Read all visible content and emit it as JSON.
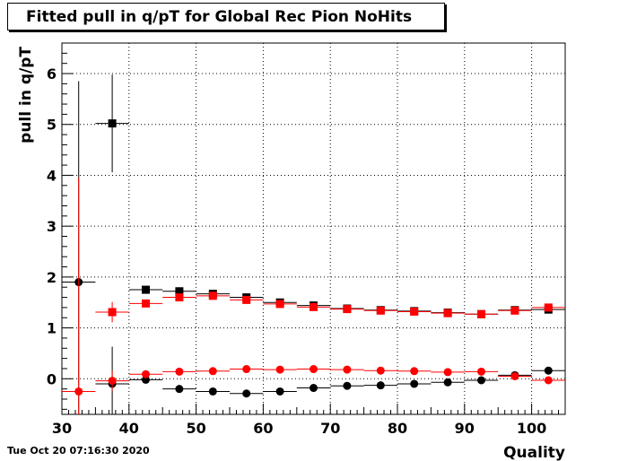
{
  "title": "Fitted pull in q/pT for Global Rec Pion NoHits",
  "timestamp": "Tue Oct 20 07:16:30 2020",
  "chart_data": {
    "type": "scatter",
    "title": "Fitted pull in q/pT for Global Rec Pion NoHits",
    "xlabel": "Quality",
    "ylabel": "pull in q/pT",
    "xlim": [
      30,
      105
    ],
    "ylim": [
      -0.7,
      6.6
    ],
    "xticks": [
      30,
      40,
      50,
      60,
      70,
      80,
      90,
      100
    ],
    "yticks": [
      0,
      1,
      2,
      3,
      4,
      5,
      6
    ],
    "grid": true,
    "x": [
      32.5,
      37.5,
      42.5,
      47.5,
      52.5,
      57.5,
      62.5,
      67.5,
      72.5,
      77.5,
      82.5,
      87.5,
      92.5,
      97.5,
      102.5
    ],
    "x_error": 2.5,
    "series": [
      {
        "color": "#000000",
        "marker": "square",
        "values": [
          null,
          5.02,
          1.75,
          1.72,
          1.67,
          1.6,
          1.5,
          1.44,
          1.38,
          1.35,
          1.33,
          1.3,
          1.27,
          1.35,
          1.36
        ],
        "errors": [
          null,
          0.96,
          0.07,
          0.05,
          0.04,
          0.03,
          0.03,
          0.03,
          0.03,
          0.03,
          0.03,
          0.03,
          0.03,
          0.03,
          0.04
        ]
      },
      {
        "color": "#ff0000",
        "marker": "square",
        "values": [
          null,
          1.31,
          1.48,
          1.6,
          1.63,
          1.55,
          1.47,
          1.41,
          1.37,
          1.34,
          1.32,
          1.29,
          1.27,
          1.34,
          1.4
        ],
        "errors": [
          null,
          0.2,
          0.07,
          0.05,
          0.04,
          0.03,
          0.03,
          0.03,
          0.03,
          0.03,
          0.03,
          0.03,
          0.03,
          0.03,
          0.04
        ]
      },
      {
        "color": "#000000",
        "marker": "circle",
        "values": [
          1.9,
          -0.1,
          -0.02,
          -0.2,
          -0.25,
          -0.29,
          -0.25,
          -0.18,
          -0.14,
          -0.13,
          -0.1,
          -0.07,
          -0.03,
          0.07,
          0.16
        ],
        "errors": [
          3.95,
          0.73,
          0.07,
          0.05,
          0.04,
          0.03,
          0.03,
          0.03,
          0.03,
          0.03,
          0.03,
          0.03,
          0.03,
          0.04,
          0.04
        ]
      },
      {
        "color": "#ff0000",
        "marker": "circle",
        "values": [
          -0.25,
          -0.04,
          0.09,
          0.14,
          0.15,
          0.19,
          0.18,
          0.19,
          0.18,
          0.16,
          0.15,
          0.13,
          0.14,
          0.05,
          -0.03
        ],
        "errors": [
          4.2,
          0.2,
          0.06,
          0.05,
          0.04,
          0.03,
          0.03,
          0.03,
          0.03,
          0.03,
          0.03,
          0.03,
          0.03,
          0.04,
          0.04
        ]
      }
    ]
  }
}
